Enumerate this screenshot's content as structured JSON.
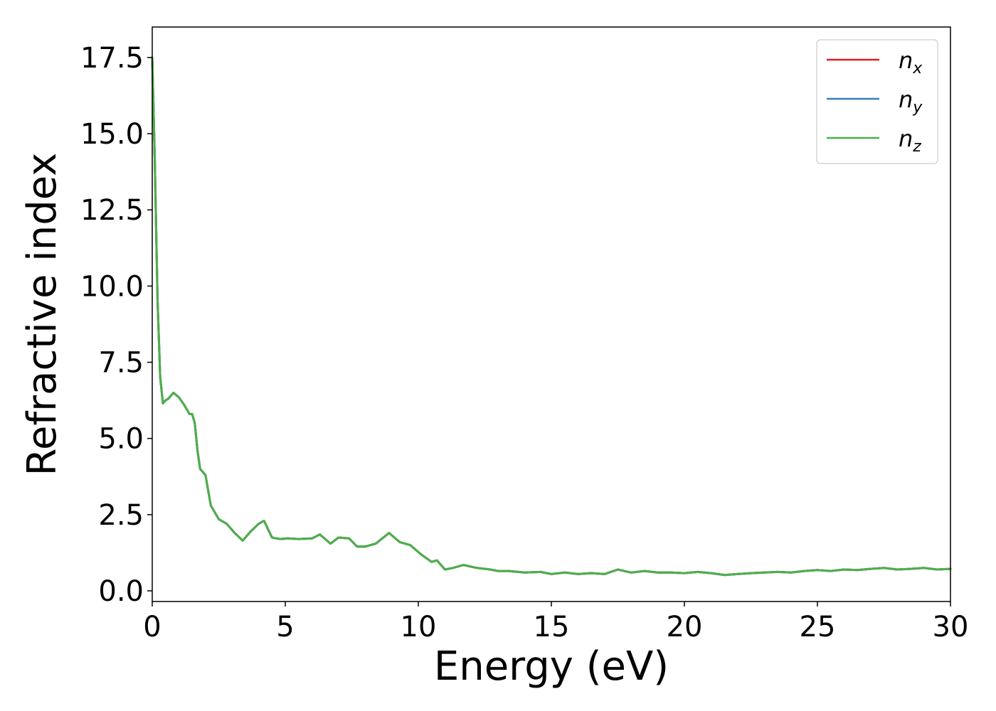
{
  "chart_data": {
    "type": "line",
    "xlabel": "Energy (eV)",
    "ylabel": "Refractive index",
    "xlim": [
      0,
      30
    ],
    "ylim": [
      -0.35,
      18.5
    ],
    "xticks": [
      0,
      5,
      10,
      15,
      20,
      25,
      30
    ],
    "xtick_labels": [
      "0",
      "5",
      "10",
      "15",
      "20",
      "25",
      "30"
    ],
    "yticks": [
      0,
      2.5,
      5,
      7.5,
      10,
      12.5,
      15,
      17.5
    ],
    "ytick_labels": [
      "0.0",
      "2.5",
      "5.0",
      "7.5",
      "10.0",
      "12.5",
      "15.0",
      "17.5"
    ],
    "grid": false,
    "legend_position": "top-right",
    "colors": {
      "nx": "#e41a1c",
      "ny": "#377eb8",
      "nz": "#4daf4a"
    },
    "legend": [
      {
        "base": "n",
        "sub": "x",
        "color": "#e41a1c"
      },
      {
        "base": "n",
        "sub": "y",
        "color": "#377eb8"
      },
      {
        "base": "n",
        "sub": "z",
        "color": "#4daf4a"
      }
    ],
    "x": [
      0,
      0.1,
      0.2,
      0.3,
      0.4,
      0.5,
      0.6,
      0.8,
      1.0,
      1.2,
      1.4,
      1.5,
      1.6,
      1.7,
      1.8,
      2.0,
      2.2,
      2.5,
      2.8,
      3.1,
      3.4,
      3.7,
      4.0,
      4.2,
      4.5,
      4.8,
      5.1,
      5.5,
      6.0,
      6.3,
      6.7,
      7.0,
      7.4,
      7.7,
      8.0,
      8.4,
      8.9,
      9.3,
      9.7,
      10.1,
      10.5,
      10.7,
      11.0,
      11.3,
      11.7,
      12.2,
      12.7,
      13.0,
      13.4,
      14.0,
      14.6,
      15.0,
      15.5,
      16.0,
      16.5,
      17.0,
      17.5,
      18.0,
      18.5,
      19.0,
      19.5,
      20.0,
      20.5,
      21.0,
      21.5,
      22.0,
      22.5,
      23.0,
      23.5,
      24.0,
      24.5,
      25.0,
      25.5,
      26.0,
      26.5,
      27.0,
      27.5,
      28.0,
      28.5,
      29.0,
      29.5,
      30.0
    ],
    "series": [
      {
        "name": "n_x",
        "color": "#e41a1c",
        "values": [
          17.5,
          14.0,
          9.5,
          7.0,
          6.15,
          6.25,
          6.3,
          6.5,
          6.35,
          6.1,
          5.8,
          5.8,
          5.5,
          4.6,
          4.0,
          3.8,
          2.8,
          2.35,
          2.2,
          1.9,
          1.65,
          1.95,
          2.2,
          2.3,
          1.75,
          1.7,
          1.72,
          1.7,
          1.72,
          1.85,
          1.55,
          1.75,
          1.72,
          1.45,
          1.45,
          1.55,
          1.9,
          1.6,
          1.5,
          1.2,
          0.95,
          1.0,
          0.7,
          0.75,
          0.85,
          0.75,
          0.7,
          0.65,
          0.65,
          0.6,
          0.62,
          0.55,
          0.6,
          0.55,
          0.58,
          0.55,
          0.7,
          0.6,
          0.65,
          0.6,
          0.6,
          0.58,
          0.62,
          0.58,
          0.52,
          0.55,
          0.58,
          0.6,
          0.62,
          0.6,
          0.65,
          0.68,
          0.65,
          0.7,
          0.68,
          0.72,
          0.75,
          0.7,
          0.72,
          0.75,
          0.7,
          0.72
        ]
      },
      {
        "name": "n_y",
        "color": "#377eb8",
        "values": [
          17.5,
          14.0,
          9.5,
          7.0,
          6.15,
          6.25,
          6.3,
          6.5,
          6.35,
          6.1,
          5.8,
          5.8,
          5.5,
          4.6,
          4.0,
          3.8,
          2.8,
          2.35,
          2.2,
          1.9,
          1.65,
          1.95,
          2.2,
          2.3,
          1.75,
          1.7,
          1.72,
          1.7,
          1.72,
          1.85,
          1.55,
          1.75,
          1.72,
          1.45,
          1.45,
          1.55,
          1.9,
          1.6,
          1.5,
          1.2,
          0.95,
          1.0,
          0.7,
          0.75,
          0.85,
          0.75,
          0.7,
          0.65,
          0.65,
          0.6,
          0.62,
          0.55,
          0.6,
          0.55,
          0.58,
          0.55,
          0.7,
          0.6,
          0.65,
          0.6,
          0.6,
          0.58,
          0.62,
          0.58,
          0.52,
          0.55,
          0.58,
          0.6,
          0.62,
          0.6,
          0.65,
          0.68,
          0.65,
          0.7,
          0.68,
          0.72,
          0.75,
          0.7,
          0.72,
          0.75,
          0.7,
          0.72
        ]
      },
      {
        "name": "n_z",
        "color": "#4daf4a",
        "values": [
          17.5,
          14.0,
          9.5,
          7.0,
          6.15,
          6.25,
          6.3,
          6.5,
          6.35,
          6.1,
          5.8,
          5.8,
          5.5,
          4.6,
          4.0,
          3.8,
          2.8,
          2.35,
          2.2,
          1.9,
          1.65,
          1.95,
          2.2,
          2.3,
          1.75,
          1.7,
          1.72,
          1.7,
          1.72,
          1.85,
          1.55,
          1.75,
          1.72,
          1.45,
          1.45,
          1.55,
          1.9,
          1.6,
          1.5,
          1.2,
          0.95,
          1.0,
          0.7,
          0.75,
          0.85,
          0.75,
          0.7,
          0.65,
          0.65,
          0.6,
          0.62,
          0.55,
          0.6,
          0.55,
          0.58,
          0.55,
          0.7,
          0.6,
          0.65,
          0.6,
          0.6,
          0.58,
          0.62,
          0.58,
          0.52,
          0.55,
          0.58,
          0.6,
          0.62,
          0.6,
          0.65,
          0.68,
          0.65,
          0.7,
          0.68,
          0.72,
          0.75,
          0.7,
          0.72,
          0.75,
          0.7,
          0.72
        ]
      }
    ]
  }
}
